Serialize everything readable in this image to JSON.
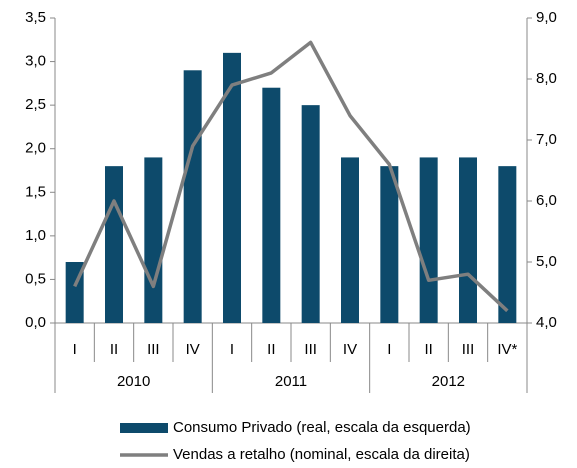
{
  "chart_data": {
    "type": "bar_line",
    "categories": [
      "I",
      "II",
      "III",
      "IV",
      "I",
      "II",
      "III",
      "IV",
      "I",
      "II",
      "III",
      "IV*"
    ],
    "groups": [
      "2010",
      "2011",
      "2012"
    ],
    "series": [
      {
        "name": "Consumo Privado (real, escala da esquerda)",
        "type": "bar",
        "color": "#0d4a6b",
        "values": [
          0.7,
          1.8,
          1.9,
          2.9,
          3.1,
          2.7,
          2.5,
          1.9,
          1.8,
          1.9,
          1.9,
          1.8
        ]
      },
      {
        "name": "Vendas a retalho (nominal, escala da direita)",
        "type": "line",
        "axis": "y2",
        "color": "#7f7f7f",
        "values": [
          4.6,
          6.0,
          4.6,
          6.9,
          7.9,
          8.1,
          8.6,
          7.4,
          6.6,
          4.7,
          4.8,
          4.2
        ]
      }
    ],
    "ylim": [
      0,
      3.5
    ],
    "yticks": [
      {
        "value": 0,
        "label": "0,0"
      },
      {
        "value": 0.5,
        "label": "0,5"
      },
      {
        "value": 1,
        "label": "1,0"
      },
      {
        "value": 1.5,
        "label": "1,5"
      },
      {
        "value": 2,
        "label": "2,0"
      },
      {
        "value": 2.5,
        "label": "2,5"
      },
      {
        "value": 3,
        "label": "3,0"
      },
      {
        "value": 3.5,
        "label": "3,5"
      }
    ],
    "y2lim": [
      4,
      9
    ],
    "y2ticks": [
      {
        "value": 4,
        "label": "4,0"
      },
      {
        "value": 5,
        "label": "5,0"
      },
      {
        "value": 6,
        "label": "6,0"
      },
      {
        "value": 7,
        "label": "7,0"
      },
      {
        "value": 8,
        "label": "8,0"
      },
      {
        "value": 9,
        "label": "9,0"
      }
    ]
  }
}
